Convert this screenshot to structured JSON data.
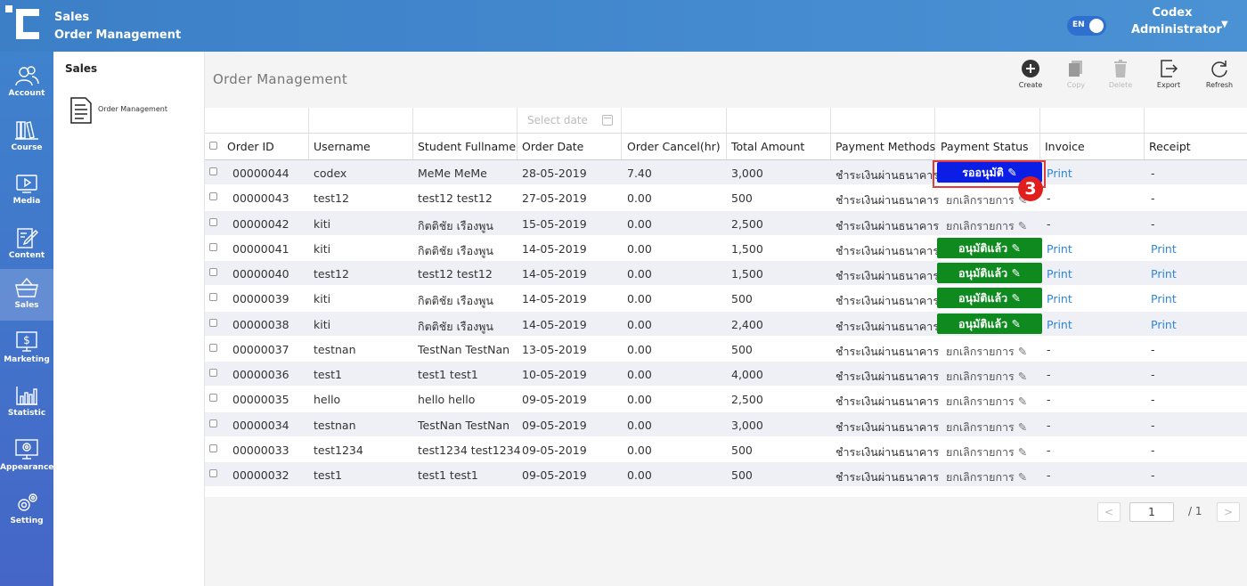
{
  "header": {
    "breadcrumb_section": "Sales",
    "breadcrumb_page": "Order Management",
    "lang_toggle": "EN",
    "user_name": "Codex",
    "user_role": "Administrator"
  },
  "sidebar": {
    "items": [
      {
        "label": "Account",
        "icon": "users-icon"
      },
      {
        "label": "Course",
        "icon": "books-icon"
      },
      {
        "label": "Media",
        "icon": "play-icon"
      },
      {
        "label": "Content",
        "icon": "edit-icon"
      },
      {
        "label": "Sales",
        "icon": "basket-icon",
        "active": true
      },
      {
        "label": "Marketing",
        "icon": "dollar-icon"
      },
      {
        "label": "Statistic",
        "icon": "chart-icon"
      },
      {
        "label": "Appearance",
        "icon": "monitor-gear-icon"
      },
      {
        "label": "Setting",
        "icon": "gear-icon"
      }
    ]
  },
  "subnav": {
    "title": "Sales",
    "item_label": "Order Management"
  },
  "main": {
    "title": "Order Management",
    "toolbar": {
      "create": "Create",
      "copy": "Copy",
      "delete": "Delete",
      "export": "Export",
      "refresh": "Refresh"
    },
    "filter": {
      "date_placeholder": "Select date"
    },
    "columns": [
      "Order ID",
      "Username",
      "Student Fullname",
      "Order Date",
      "Order Cancel(hr)",
      "Total Amount",
      "Payment Methods",
      "Payment Status",
      "Invoice",
      "Receipt"
    ],
    "rows": [
      {
        "id": "00000044",
        "user": "codex",
        "name": "MeMe MeMe",
        "date": "28-05-2019",
        "cancel": "7.40",
        "amount": "3,000",
        "method": "ชำระเงินผ่านธนาคาร",
        "status": "รออนุมัติ",
        "status_type": "pending",
        "invoice": "Print",
        "receipt": "-"
      },
      {
        "id": "00000043",
        "user": "test12",
        "name": "test12 test12",
        "date": "27-05-2019",
        "cancel": "0.00",
        "amount": "500",
        "method": "ชำระเงินผ่านธนาคาร",
        "status": "ยกเลิกรายการ",
        "status_type": "cancelled",
        "invoice": "-",
        "receipt": "-"
      },
      {
        "id": "00000042",
        "user": "kiti",
        "name": "กิตติชัย เรืองพูน",
        "date": "15-05-2019",
        "cancel": "0.00",
        "amount": "2,500",
        "method": "ชำระเงินผ่านธนาคาร",
        "status": "ยกเลิกรายการ",
        "status_type": "cancelled",
        "invoice": "-",
        "receipt": "-"
      },
      {
        "id": "00000041",
        "user": "kiti",
        "name": "กิตติชัย เรืองพูน",
        "date": "14-05-2019",
        "cancel": "0.00",
        "amount": "1,500",
        "method": "ชำระเงินผ่านธนาคาร",
        "status": "อนุมัติแล้ว",
        "status_type": "approved",
        "invoice": "Print",
        "receipt": "Print"
      },
      {
        "id": "00000040",
        "user": "test12",
        "name": "test12 test12",
        "date": "14-05-2019",
        "cancel": "0.00",
        "amount": "1,500",
        "method": "ชำระเงินผ่านธนาคาร",
        "status": "อนุมัติแล้ว",
        "status_type": "approved",
        "invoice": "Print",
        "receipt": "Print"
      },
      {
        "id": "00000039",
        "user": "kiti",
        "name": "กิตติชัย เรืองพูน",
        "date": "14-05-2019",
        "cancel": "0.00",
        "amount": "500",
        "method": "ชำระเงินผ่านธนาคาร",
        "status": "อนุมัติแล้ว",
        "status_type": "approved",
        "invoice": "Print",
        "receipt": "Print"
      },
      {
        "id": "00000038",
        "user": "kiti",
        "name": "กิตติชัย เรืองพูน",
        "date": "14-05-2019",
        "cancel": "0.00",
        "amount": "2,400",
        "method": "ชำระเงินผ่านธนาคาร",
        "status": "อนุมัติแล้ว",
        "status_type": "approved",
        "invoice": "Print",
        "receipt": "Print"
      },
      {
        "id": "00000037",
        "user": "testnan",
        "name": "TestNan TestNan",
        "date": "13-05-2019",
        "cancel": "0.00",
        "amount": "500",
        "method": "ชำระเงินผ่านธนาคาร",
        "status": "ยกเลิกรายการ",
        "status_type": "cancelled",
        "invoice": "-",
        "receipt": "-"
      },
      {
        "id": "00000036",
        "user": "test1",
        "name": "test1 test1",
        "date": "10-05-2019",
        "cancel": "0.00",
        "amount": "4,000",
        "method": "ชำระเงินผ่านธนาคาร",
        "status": "ยกเลิกรายการ",
        "status_type": "cancelled",
        "invoice": "-",
        "receipt": "-"
      },
      {
        "id": "00000035",
        "user": "hello",
        "name": "hello hello",
        "date": "09-05-2019",
        "cancel": "0.00",
        "amount": "2,500",
        "method": "ชำระเงินผ่านธนาคาร",
        "status": "ยกเลิกรายการ",
        "status_type": "cancelled",
        "invoice": "-",
        "receipt": "-"
      },
      {
        "id": "00000034",
        "user": "testnan",
        "name": "TestNan TestNan",
        "date": "09-05-2019",
        "cancel": "0.00",
        "amount": "3,000",
        "method": "ชำระเงินผ่านธนาคาร",
        "status": "ยกเลิกรายการ",
        "status_type": "cancelled",
        "invoice": "-",
        "receipt": "-"
      },
      {
        "id": "00000033",
        "user": "test1234",
        "name": "test1234 test1234",
        "date": "09-05-2019",
        "cancel": "0.00",
        "amount": "500",
        "method": "ชำระเงินผ่านธนาคาร",
        "status": "ยกเลิกรายการ",
        "status_type": "cancelled",
        "invoice": "-",
        "receipt": "-"
      },
      {
        "id": "00000032",
        "user": "test1",
        "name": "test1 test1",
        "date": "09-05-2019",
        "cancel": "0.00",
        "amount": "500",
        "method": "ชำระเงินผ่านธนาคาร",
        "status": "ยกเลิกรายการ",
        "status_type": "cancelled",
        "invoice": "-",
        "receipt": "-"
      }
    ],
    "annotation_number": "3",
    "pagination": {
      "current_page": "1",
      "total_pages": "/ 1",
      "prev": "<",
      "next": ">"
    }
  },
  "colors": {
    "header_gradient_start": "#3c7fc7",
    "pending": "#0a1ee6",
    "approved": "#0f8a1e",
    "link": "#2f86d8",
    "annotation": "#e01e1e"
  }
}
